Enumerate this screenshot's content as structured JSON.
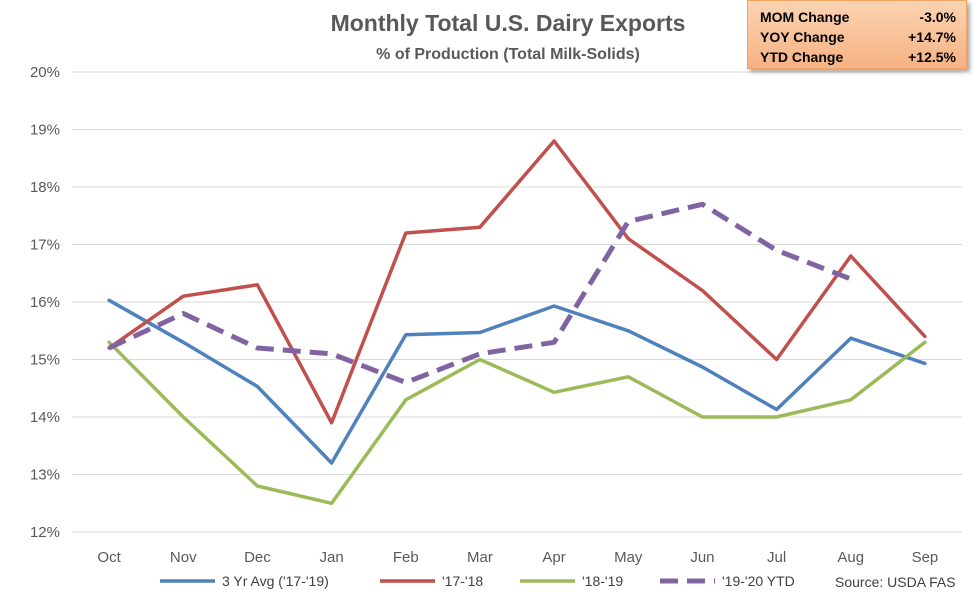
{
  "chart_data": {
    "type": "line",
    "title": "Monthly Total U.S. Dairy Exports",
    "subtitle": "% of Production (Total Milk-Solids)",
    "categories": [
      "Oct",
      "Nov",
      "Dec",
      "Jan",
      "Feb",
      "Mar",
      "Apr",
      "May",
      "Jun",
      "Jul",
      "Aug",
      "Sep"
    ],
    "ylim": [
      12,
      20
    ],
    "yticks": [
      "12%",
      "13%",
      "14%",
      "15%",
      "16%",
      "17%",
      "18%",
      "19%",
      "20%"
    ],
    "grid": true,
    "legend_position": "bottom",
    "series": [
      {
        "name": "3 Yr Avg ('17-'19)",
        "color": "#4f81bd",
        "dash": false,
        "values": [
          16.03,
          15.3,
          14.53,
          13.2,
          15.43,
          15.47,
          15.93,
          15.5,
          14.87,
          14.13,
          15.37,
          14.93
        ]
      },
      {
        "name": "'17-'18",
        "color": "#c0504d",
        "dash": false,
        "values": [
          15.2,
          16.1,
          16.3,
          13.9,
          17.2,
          17.3,
          18.8,
          17.1,
          16.2,
          15.0,
          16.8,
          15.4
        ]
      },
      {
        "name": "'18-'19",
        "color": "#9bbb59",
        "dash": false,
        "values": [
          15.3,
          14.0,
          12.8,
          12.5,
          14.3,
          15.0,
          14.43,
          14.7,
          14.0,
          14.0,
          14.3,
          15.3
        ]
      },
      {
        "name": "'19-'20 YTD",
        "color": "#8064a2",
        "dash": true,
        "values": [
          15.2,
          15.8,
          15.2,
          15.1,
          14.6,
          15.1,
          15.3,
          17.4,
          17.7,
          16.9,
          16.4,
          null
        ]
      }
    ],
    "source": "Source: USDA FAS",
    "stats": [
      {
        "label": "MOM Change",
        "value": "-3.0%"
      },
      {
        "label": "YOY Change",
        "value": "+14.7%"
      },
      {
        "label": "YTD Change",
        "value": "+12.5%"
      }
    ]
  }
}
